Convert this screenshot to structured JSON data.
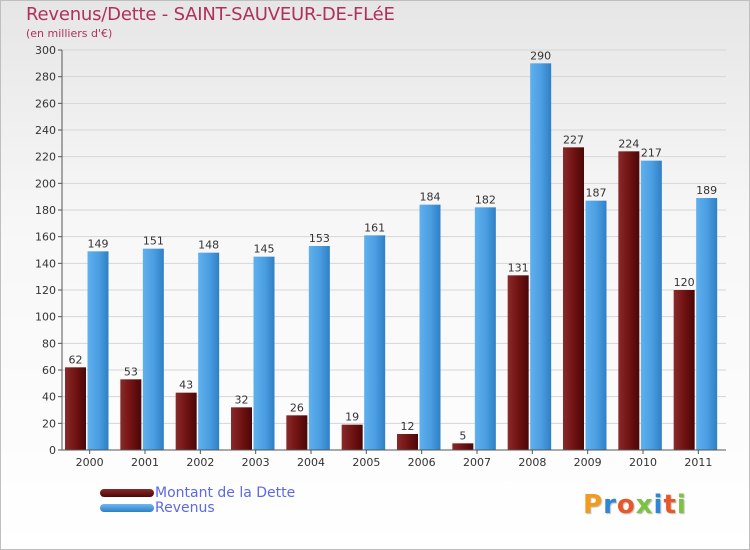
{
  "title": "Revenus/Dette - SAINT-SAUVEUR-DE-FLéE",
  "subtitle": "(en milliers d'€)",
  "logo_text": "Proxiti",
  "colors": {
    "dette": "#7a1818",
    "revenus": "#4a9de0",
    "title": "#b0305a",
    "legend_text": "#5b69e8"
  },
  "chart_data": {
    "type": "bar",
    "title": "Revenus/Dette - SAINT-SAUVEUR-DE-FLéE",
    "ylabel": "(en milliers d'€)",
    "xlabel": "",
    "ylim": [
      0,
      300
    ],
    "yticks": [
      0,
      20,
      40,
      60,
      80,
      100,
      120,
      140,
      160,
      180,
      200,
      220,
      240,
      260,
      280,
      300
    ],
    "grid": true,
    "legend_position": "bottom-left",
    "categories": [
      "2000",
      "2001",
      "2002",
      "2003",
      "2004",
      "2005",
      "2006",
      "2007",
      "2008",
      "2009",
      "2010",
      "2011"
    ],
    "series": [
      {
        "name": "Montant de la Dette",
        "values": [
          62,
          53,
          43,
          32,
          26,
          19,
          12,
          5,
          131,
          227,
          224,
          120
        ]
      },
      {
        "name": "Revenus",
        "values": [
          149,
          151,
          148,
          145,
          153,
          161,
          184,
          182,
          290,
          187,
          217,
          189
        ]
      }
    ]
  }
}
